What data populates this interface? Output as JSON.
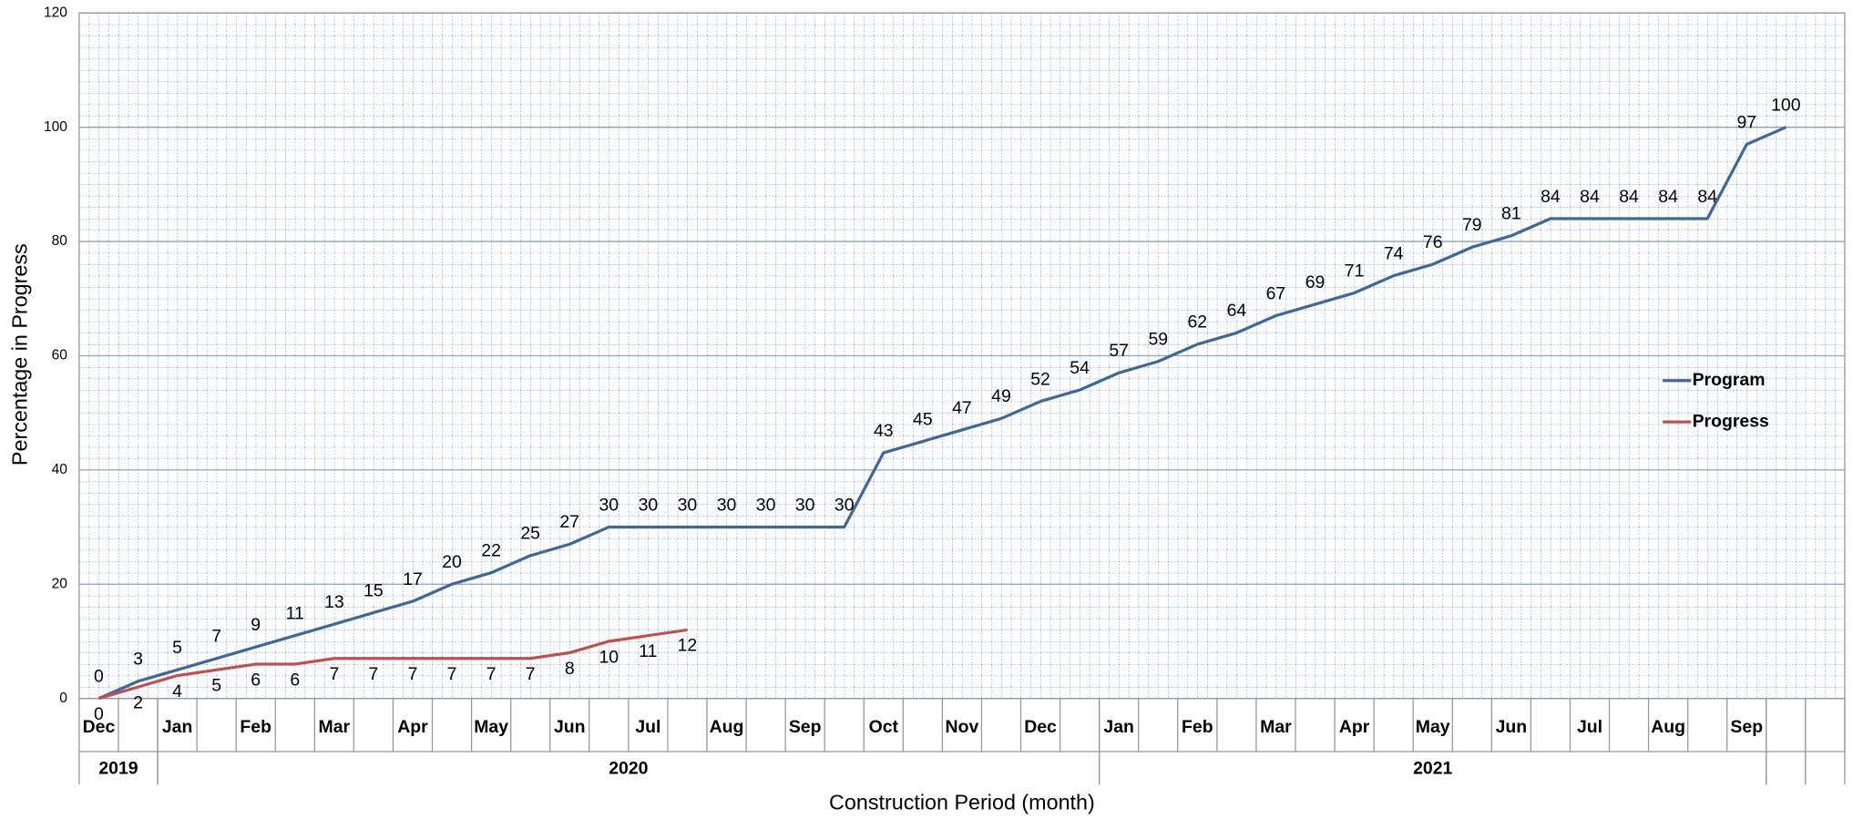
{
  "chart_data": {
    "type": "line",
    "x_label": "Construction Period (month)",
    "y_label": "Percentage in Progress",
    "categories": [
      "Dec",
      null,
      "Jan",
      null,
      "Feb",
      null,
      "Mar",
      null,
      "Apr",
      null,
      "May",
      null,
      "Jun",
      null,
      "Jul",
      null,
      "Aug",
      null,
      "Sep",
      null,
      "Oct",
      null,
      "Nov",
      null,
      "Dec",
      null,
      "Jan",
      null,
      "Feb",
      null,
      "Mar",
      null,
      "Apr",
      null,
      "May",
      null,
      "Jun",
      null,
      "Jul",
      null,
      "Aug",
      null,
      "Sep",
      null,
      null
    ],
    "category_groups": [
      {
        "label": "2019",
        "start": 0,
        "count": 2
      },
      {
        "label": "2020",
        "start": 2,
        "count": 24
      },
      {
        "label": "2021",
        "start": 26,
        "count": 17
      },
      {
        "label": null,
        "start": 43,
        "count": 1
      },
      {
        "label": null,
        "start": 44,
        "count": 1
      }
    ],
    "series": [
      {
        "name": "Program",
        "color": "#41679a",
        "label_position": "above",
        "values": [
          0,
          3,
          5,
          7,
          9,
          11,
          13,
          15,
          17,
          20,
          22,
          25,
          27,
          30,
          30,
          30,
          30,
          30,
          30,
          30,
          43,
          45,
          47,
          49,
          52,
          54,
          57,
          59,
          62,
          64,
          67,
          69,
          71,
          74,
          76,
          79,
          81,
          84,
          84,
          84,
          84,
          84,
          97,
          100,
          null
        ]
      },
      {
        "name": "Progress",
        "color": "#c0504d",
        "label_position": "below",
        "values": [
          0,
          2,
          4,
          5,
          6,
          6,
          7,
          7,
          7,
          7,
          7,
          7,
          8,
          10,
          11,
          12,
          null,
          null,
          null,
          null,
          null,
          null,
          null,
          null,
          null,
          null,
          null,
          null,
          null,
          null,
          null,
          null,
          null,
          null,
          null,
          null,
          null,
          null,
          null,
          null,
          null,
          null,
          null,
          null,
          null
        ]
      }
    ],
    "ylim": [
      0,
      120
    ],
    "yticks": [
      0,
      20,
      40,
      60,
      80,
      100,
      120
    ],
    "grid": true,
    "legend": "right"
  }
}
